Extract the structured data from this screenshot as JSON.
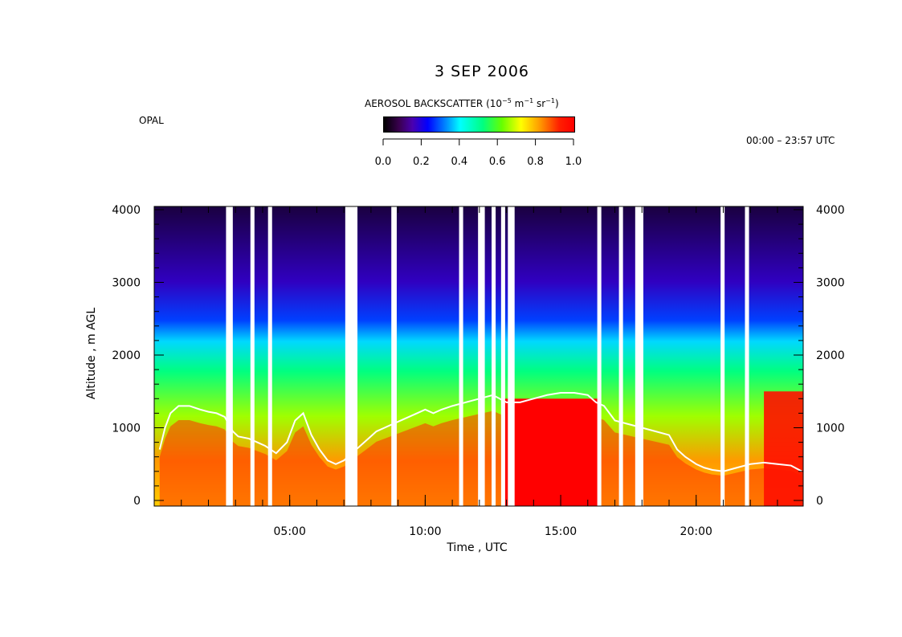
{
  "chart_data": {
    "type": "heatmap",
    "title": "3 SEP 2006",
    "station": "OPAL",
    "time_range": "00:00 – 23:57 UTC",
    "colorbar": {
      "label": "AEROSOL BACKSCATTER",
      "label_units_prefix": "(10",
      "label_units_exp": "−5",
      "label_units_mid": " m",
      "label_units_exp2": "−1",
      "label_units_mid2": " sr",
      "label_units_exp3": "−1",
      "label_units_suffix": ")",
      "range": [
        0.0,
        1.0
      ],
      "ticks": [
        "0.0",
        "0.2",
        "0.4",
        "0.6",
        "0.8",
        "1.0"
      ],
      "colormap": "rainbow (black-purple-blue-cyan-green-yellow-red)"
    },
    "xlabel": "Time , UTC",
    "ylabel": "Altitude , m AGL",
    "xlim_hours": [
      0,
      23.95
    ],
    "ylim": [
      0,
      4000
    ],
    "x_ticks": [
      {
        "hour": 5,
        "label": "05:00"
      },
      {
        "hour": 10,
        "label": "10:00"
      },
      {
        "hour": 15,
        "label": "15:00"
      },
      {
        "hour": 20,
        "label": "20:00"
      }
    ],
    "y_ticks": [
      {
        "value": 0,
        "label": "0"
      },
      {
        "value": 1000,
        "label": "1000"
      },
      {
        "value": 2000,
        "label": "2000"
      },
      {
        "value": 3000,
        "label": "3000"
      },
      {
        "value": 4000,
        "label": "4000"
      }
    ],
    "data_gaps_hours": [
      [
        2.65,
        2.9
      ],
      [
        3.55,
        3.7
      ],
      [
        4.2,
        4.35
      ],
      [
        7.05,
        7.5
      ],
      [
        8.75,
        8.95
      ],
      [
        11.25,
        11.4
      ],
      [
        11.95,
        12.2
      ],
      [
        12.45,
        12.6
      ],
      [
        12.8,
        12.95
      ],
      [
        13.05,
        13.3
      ],
      [
        16.35,
        16.5
      ],
      [
        17.15,
        17.3
      ],
      [
        17.75,
        18.05
      ],
      [
        20.9,
        21.05
      ],
      [
        21.8,
        21.95
      ]
    ],
    "series": [
      {
        "name": "boundary layer height (white line)",
        "color": "#ffffff",
        "x_hours": [
          0.2,
          0.4,
          0.6,
          0.9,
          1.3,
          1.7,
          2.0,
          2.3,
          2.6,
          2.9,
          3.1,
          3.5,
          3.8,
          4.1,
          4.5,
          4.9,
          5.2,
          5.5,
          5.8,
          6.1,
          6.4,
          6.7,
          7.0,
          7.6,
          7.9,
          8.2,
          8.5,
          8.8,
          9.1,
          9.4,
          9.7,
          10.0,
          10.3,
          10.6,
          11.0,
          11.5,
          12.0,
          12.5,
          13.0,
          13.5,
          14.0,
          14.5,
          15.0,
          15.5,
          16.0,
          16.3,
          16.6,
          17.0,
          17.5,
          18.0,
          18.5,
          19.0,
          19.3,
          19.6,
          20.0,
          20.3,
          20.6,
          21.0,
          21.5,
          22.0,
          22.5,
          23.0,
          23.5,
          23.9
        ],
        "values": [
          700,
          1000,
          1200,
          1300,
          1300,
          1250,
          1220,
          1200,
          1150,
          950,
          880,
          850,
          800,
          750,
          650,
          800,
          1100,
          1200,
          900,
          700,
          550,
          500,
          550,
          750,
          850,
          950,
          1000,
          1050,
          1100,
          1150,
          1200,
          1250,
          1200,
          1250,
          1300,
          1350,
          1400,
          1450,
          1350,
          1350,
          1400,
          1450,
          1480,
          1480,
          1450,
          1350,
          1300,
          1100,
          1050,
          1000,
          950,
          900,
          700,
          600,
          500,
          450,
          420,
          400,
          450,
          500,
          520,
          500,
          480,
          400
        ]
      }
    ]
  }
}
